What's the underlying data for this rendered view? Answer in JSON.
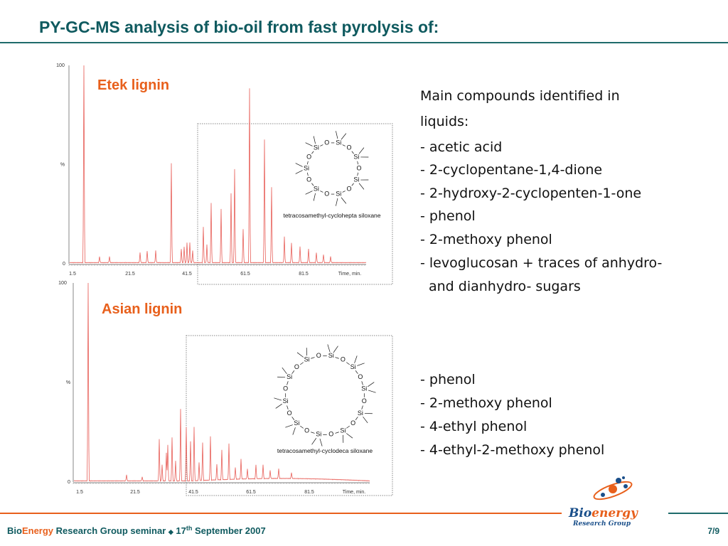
{
  "title": "PY-GC-MS analysis of bio-oil from fast pyrolysis of:",
  "panels": [
    {
      "label": "Etek lignin",
      "y_axis": [
        "100",
        "%",
        "0"
      ],
      "x_axis": [
        "1.5",
        "21.5",
        "41.5",
        "61.5",
        "81.5",
        "Time, min."
      ],
      "structure_caption": "tetracosamethyl-cyclohepta siloxane",
      "ring_atoms": [
        "Si",
        "O",
        "Si",
        "O",
        "Si",
        "O",
        "Si",
        "O",
        "Si",
        "O",
        "Si",
        "O",
        "Si",
        "O"
      ],
      "compounds": [
        "Main compounds identified in",
        "liquids:",
        "- acetic acid",
        "- 2-cyclopentane-1,4-dione",
        "- 2-hydroxy-2-cyclopenten-1-one",
        "- phenol",
        "- 2-methoxy phenol",
        "- levoglucosan + traces of anhydro-",
        "and dianhydro- sugars"
      ]
    },
    {
      "label": "Asian lignin",
      "y_axis": [
        "100",
        "%",
        "0"
      ],
      "x_axis": [
        "1.5",
        "21.5",
        "41.5",
        "61.5",
        "81.5",
        "Time, min."
      ],
      "structure_caption": "tetracosamethyl-cyclodeca siloxane",
      "ring_atoms": [
        "Si",
        "O",
        "Si",
        "O",
        "Si",
        "O",
        "Si",
        "O",
        "Si",
        "O",
        "Si",
        "O",
        "Si",
        "O",
        "Si",
        "O",
        "Si",
        "O",
        "Si",
        "O"
      ],
      "compounds": [
        "- phenol",
        "- 2-methoxy phenol",
        "- 4-ethyl phenol",
        "- 4-ethyl-2-methoxy phenol"
      ]
    }
  ],
  "footer": {
    "bio": "Bio",
    "energy": "Energy",
    "text": " Research Group seminar ",
    "bullet": "◆",
    "day": " 17",
    "ordinal": "th",
    "date": " September 2007",
    "page": "7/9"
  },
  "logo": {
    "bio": "Bio",
    "energy": "energy",
    "group": "Research Group"
  }
}
